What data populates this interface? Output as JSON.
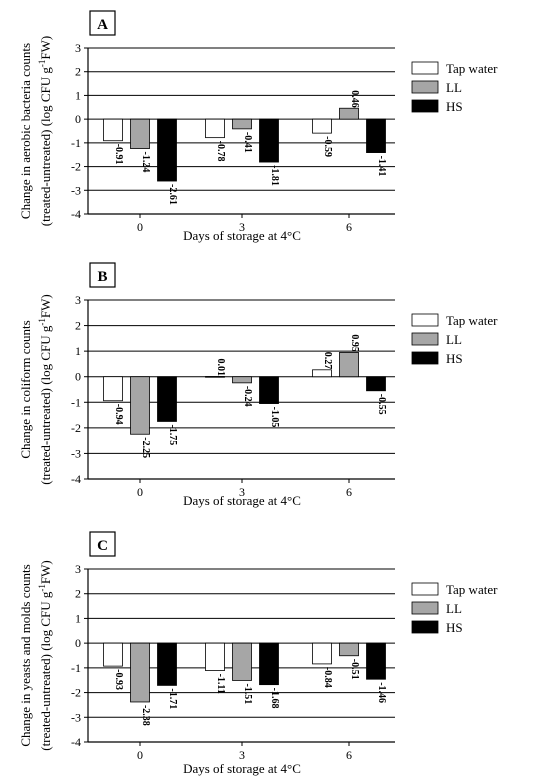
{
  "chart_data": [
    {
      "type": "bar",
      "panel": "A",
      "categories": [
        "0",
        "3",
        "6"
      ],
      "series": [
        {
          "name": "Tap water",
          "values": [
            -0.91,
            -0.78,
            -0.59
          ],
          "labels": [
            "-0.91",
            "-0.78",
            "-0.59"
          ]
        },
        {
          "name": "LL",
          "values": [
            -1.24,
            -0.41,
            0.46
          ],
          "labels": [
            "-1.24",
            "-0.41",
            "0.46"
          ]
        },
        {
          "name": "HS",
          "values": [
            -2.61,
            -1.81,
            -1.41
          ],
          "labels": [
            "-2.61",
            "-1.81",
            "-1.41"
          ]
        }
      ],
      "xlabel": "Days of storage at 4°C",
      "ylabel_line1": "Change in aerobic bacteria counts",
      "ylabel_line2": "(treated-untreated) (log CFU g",
      "ylabel_sup": "-1",
      "ylabel_end": "FW)",
      "ylim": [
        -4,
        3
      ],
      "yticks": [
        -4,
        -3,
        -2,
        -1,
        0,
        1,
        2,
        3
      ],
      "grid": true,
      "legend_position": "right"
    },
    {
      "type": "bar",
      "panel": "B",
      "categories": [
        "0",
        "3",
        "6"
      ],
      "series": [
        {
          "name": "Tap water",
          "values": [
            -0.94,
            0.01,
            0.27
          ],
          "labels": [
            "-0.94",
            "0.01",
            "0.27"
          ]
        },
        {
          "name": "LL",
          "values": [
            -2.25,
            -0.24,
            0.95
          ],
          "labels": [
            "-2.25",
            "-0.24",
            "0.95"
          ]
        },
        {
          "name": "HS",
          "values": [
            -1.75,
            -1.05,
            -0.55
          ],
          "labels": [
            "-1.75",
            "-1.05",
            "-0.55"
          ]
        }
      ],
      "xlabel": "Days of storage at 4°C",
      "ylabel_line1": "Change in coliform counts",
      "ylabel_line2": "(treated-untreated) (log CFU g",
      "ylabel_sup": "-1",
      "ylabel_end": "FW)",
      "ylim": [
        -4,
        3
      ],
      "yticks": [
        -4,
        -3,
        -2,
        -1,
        0,
        1,
        2,
        3
      ],
      "grid": true,
      "legend_position": "right"
    },
    {
      "type": "bar",
      "panel": "C",
      "categories": [
        "0",
        "3",
        "6"
      ],
      "series": [
        {
          "name": "Tap water",
          "values": [
            -0.93,
            -1.11,
            -0.84
          ],
          "labels": [
            "-0.93",
            "-1.11",
            "-0.84"
          ]
        },
        {
          "name": "LL",
          "values": [
            -2.38,
            -1.51,
            -0.51
          ],
          "labels": [
            "-2.38",
            "-1.51",
            "-0.51"
          ]
        },
        {
          "name": "HS",
          "values": [
            -1.71,
            -1.68,
            -1.46
          ],
          "labels": [
            "-1.71",
            "-1.68",
            "-1.46"
          ]
        }
      ],
      "xlabel": "Days of storage at 4°C",
      "ylabel_line1": "Change in yeasts and molds counts",
      "ylabel_line2": "(treated-untreated) (log CFU g",
      "ylabel_sup": "-1",
      "ylabel_end": "FW)",
      "ylim": [
        -4,
        3
      ],
      "yticks": [
        -4,
        -3,
        -2,
        -1,
        0,
        1,
        2,
        3
      ],
      "grid": true,
      "legend_position": "right"
    }
  ],
  "colors": {
    "Tap water": "#ffffff",
    "LL": "#a6a6a6",
    "HS": "#000000"
  }
}
